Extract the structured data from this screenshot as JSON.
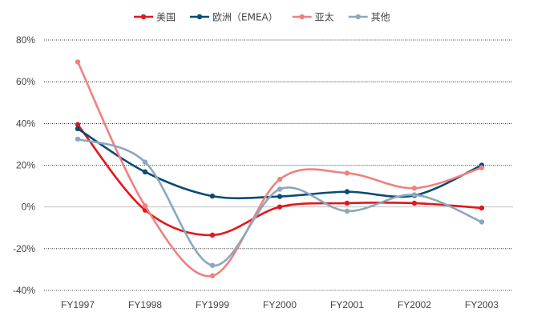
{
  "chart_data": {
    "type": "line",
    "smooth": true,
    "categories": [
      "FY1997",
      "FY1998",
      "FY1999",
      "FY2000",
      "FY2001",
      "FY2002",
      "FY2003"
    ],
    "ylim": [
      -40,
      80
    ],
    "yticks": [
      -40,
      -20,
      0,
      20,
      40,
      60,
      80
    ],
    "ytick_labels": [
      "-40%",
      "-20%",
      "0%",
      "20%",
      "40%",
      "60%",
      "80%"
    ],
    "grid": true,
    "legend_position": "top-center",
    "series": [
      {
        "name": "美国",
        "color": "#e3161b",
        "values": [
          39.5,
          -1.5,
          -13.5,
          0,
          1.8,
          1.8,
          -0.5
        ]
      },
      {
        "name": "欧洲（EMEA）",
        "color": "#0b4a73",
        "values": [
          37.5,
          16.8,
          5.2,
          5.0,
          7.3,
          5.5,
          20.0
        ]
      },
      {
        "name": "亚太",
        "color": "#f08080",
        "values": [
          69.5,
          0.5,
          -33.0,
          13.2,
          16.2,
          9.0,
          18.8
        ]
      },
      {
        "name": "其他",
        "color": "#8aa8c0",
        "values": [
          32.5,
          21.5,
          -28.0,
          8.5,
          -2.0,
          5.8,
          -7.2
        ]
      }
    ]
  }
}
